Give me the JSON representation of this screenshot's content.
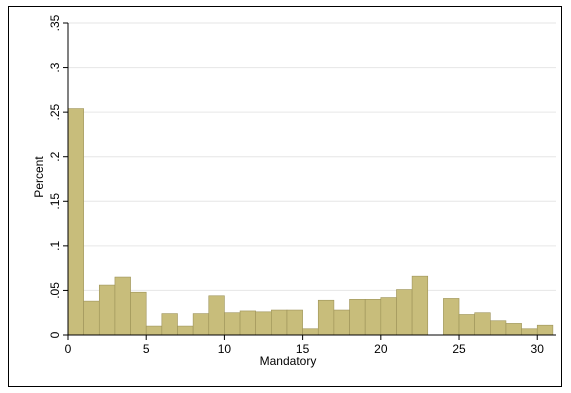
{
  "chart_data": {
    "type": "bar",
    "title": "",
    "xlabel": "Mandatory",
    "ylabel": "Percent",
    "xlim": [
      0,
      30
    ],
    "ylim": [
      0,
      0.35
    ],
    "bin_width": 1,
    "x_ticks": [
      {
        "value": 0,
        "label": "0"
      },
      {
        "value": 5,
        "label": "5"
      },
      {
        "value": 10,
        "label": "10"
      },
      {
        "value": 15,
        "label": "15"
      },
      {
        "value": 20,
        "label": "20"
      },
      {
        "value": 25,
        "label": "25"
      },
      {
        "value": 30,
        "label": "30"
      }
    ],
    "y_ticks": [
      {
        "value": 0,
        "label": "0"
      },
      {
        "value": 0.05,
        "label": ".05"
      },
      {
        "value": 0.1,
        "label": ".1"
      },
      {
        "value": 0.15,
        "label": ".15"
      },
      {
        "value": 0.2,
        "label": ".2"
      },
      {
        "value": 0.25,
        "label": ".25"
      },
      {
        "value": 0.3,
        "label": ".3"
      },
      {
        "value": 0.35,
        "label": ".35"
      }
    ],
    "grid": "horizontal",
    "bar_color": "#c8bd7b",
    "bar_edge_color": "#9c9258",
    "bins": [
      {
        "start": 0,
        "value": 0.254
      },
      {
        "start": 1,
        "value": 0.038
      },
      {
        "start": 2,
        "value": 0.056
      },
      {
        "start": 3,
        "value": 0.065
      },
      {
        "start": 4,
        "value": 0.048
      },
      {
        "start": 5,
        "value": 0.01
      },
      {
        "start": 6,
        "value": 0.024
      },
      {
        "start": 7,
        "value": 0.01
      },
      {
        "start": 8,
        "value": 0.024
      },
      {
        "start": 9,
        "value": 0.044
      },
      {
        "start": 10,
        "value": 0.025
      },
      {
        "start": 11,
        "value": 0.027
      },
      {
        "start": 12,
        "value": 0.026
      },
      {
        "start": 13,
        "value": 0.028
      },
      {
        "start": 14,
        "value": 0.028
      },
      {
        "start": 15,
        "value": 0.007
      },
      {
        "start": 16,
        "value": 0.039
      },
      {
        "start": 17,
        "value": 0.028
      },
      {
        "start": 18,
        "value": 0.04
      },
      {
        "start": 19,
        "value": 0.04
      },
      {
        "start": 20,
        "value": 0.042
      },
      {
        "start": 21,
        "value": 0.051
      },
      {
        "start": 22,
        "value": 0.066
      },
      {
        "start": 24,
        "value": 0.041
      },
      {
        "start": 25,
        "value": 0.023
      },
      {
        "start": 26,
        "value": 0.025
      },
      {
        "start": 27,
        "value": 0.016
      },
      {
        "start": 28,
        "value": 0.013
      },
      {
        "start": 29,
        "value": 0.007
      },
      {
        "start": 30,
        "value": 0.011
      }
    ]
  }
}
